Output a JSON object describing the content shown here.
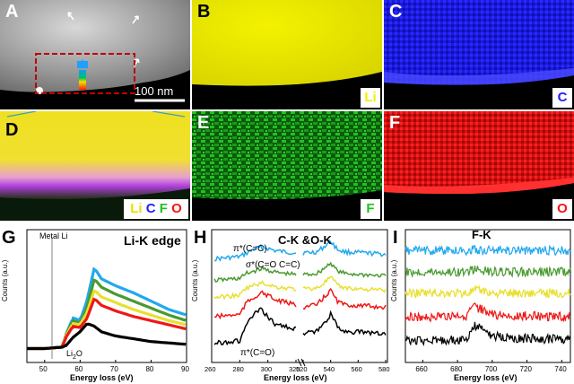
{
  "panels": {
    "A": {
      "label": "A",
      "scale_bar": "100 nm"
    },
    "B": {
      "label": "B",
      "element": "Li",
      "color": "#f2f000"
    },
    "C": {
      "label": "C",
      "element": "C",
      "color": "#2020ff"
    },
    "D": {
      "label": "D",
      "elements": [
        "Li",
        "C",
        "F",
        "O"
      ]
    },
    "E": {
      "label": "E",
      "element": "F",
      "color": "#20c020"
    },
    "F": {
      "label": "F",
      "element": "O",
      "color": "#ff1010"
    },
    "G": {
      "label": "G",
      "title": "Li-K edge",
      "annot_metal": "Metal Li",
      "annot_oxide": "Li2O",
      "ylabel": "Counts (a.u.)",
      "xlabel": "Energy loss (eV)",
      "xticks": [
        "50",
        "60",
        "70",
        "80",
        "90"
      ]
    },
    "H": {
      "label": "H",
      "title": "C-K &O-K",
      "annot_pi_cc": "π*(C=C)",
      "annot_sigma": "σ*(C=O C=C)",
      "annot_pi_co": "π*(C=O)",
      "ylabel": "Counts (a.u.)",
      "xlabel": "Energy loss (eV)",
      "xticks": [
        "260",
        "280",
        "300",
        "320",
        "520",
        "540",
        "560",
        "580"
      ]
    },
    "I": {
      "label": "I",
      "title": "F-K",
      "ylabel": "Counts (a.u.)",
      "xlabel": "Energy loss (eV)",
      "xticks": [
        "660",
        "680",
        "700",
        "720",
        "740"
      ]
    }
  },
  "spectra_colors": [
    "#22a8ee",
    "#4a9a30",
    "#e8e030",
    "#ee1818",
    "#000000"
  ],
  "chart_data": [
    {
      "type": "line",
      "title": "Li-K edge",
      "xlabel": "Energy loss (eV)",
      "ylabel": "Counts (a.u.)",
      "xlim": [
        45,
        90
      ],
      "x": [
        45,
        50,
        55,
        56,
        58,
        60,
        62,
        64,
        66,
        70,
        75,
        80,
        85,
        90
      ],
      "series": [
        {
          "values": [
            0.1,
            0.1,
            0.11,
            0.2,
            0.32,
            0.3,
            0.45,
            0.68,
            0.6,
            0.55,
            0.5,
            0.44,
            0.38,
            0.34
          ]
        },
        {
          "values": [
            0.1,
            0.1,
            0.11,
            0.2,
            0.3,
            0.28,
            0.4,
            0.6,
            0.54,
            0.49,
            0.44,
            0.39,
            0.34,
            0.3
          ]
        },
        {
          "values": [
            0.1,
            0.1,
            0.11,
            0.19,
            0.28,
            0.27,
            0.36,
            0.52,
            0.47,
            0.43,
            0.38,
            0.34,
            0.3,
            0.27
          ]
        },
        {
          "values": [
            0.1,
            0.1,
            0.11,
            0.18,
            0.26,
            0.25,
            0.32,
            0.46,
            0.41,
            0.37,
            0.33,
            0.3,
            0.27,
            0.24
          ]
        },
        {
          "values": [
            0.1,
            0.1,
            0.11,
            0.12,
            0.18,
            0.22,
            0.28,
            0.26,
            0.22,
            0.19,
            0.17,
            0.15,
            0.14,
            0.13
          ]
        }
      ]
    },
    {
      "type": "line",
      "title": "C-K &O-K",
      "xlabel": "Energy loss (eV)",
      "ylabel": "Counts (a.u.)",
      "x": [
        260,
        280,
        285,
        290,
        295,
        300,
        305,
        320,
        520,
        530,
        535,
        540,
        545,
        550,
        580
      ],
      "series": [
        {
          "values": [
            0.8,
            0.82,
            0.85,
            0.88,
            0.9,
            0.89,
            0.87,
            0.85,
            0.85,
            0.86,
            0.9,
            0.95,
            0.88,
            0.86,
            0.84
          ]
        },
        {
          "values": [
            0.62,
            0.64,
            0.68,
            0.7,
            0.72,
            0.71,
            0.69,
            0.67,
            0.67,
            0.68,
            0.72,
            0.77,
            0.7,
            0.68,
            0.66
          ]
        },
        {
          "values": [
            0.48,
            0.5,
            0.56,
            0.58,
            0.6,
            0.59,
            0.57,
            0.55,
            0.55,
            0.56,
            0.6,
            0.65,
            0.58,
            0.56,
            0.54
          ]
        },
        {
          "values": [
            0.32,
            0.34,
            0.44,
            0.48,
            0.52,
            0.5,
            0.46,
            0.42,
            0.4,
            0.42,
            0.48,
            0.54,
            0.45,
            0.42,
            0.4
          ]
        },
        {
          "values": [
            0.1,
            0.12,
            0.26,
            0.34,
            0.38,
            0.32,
            0.26,
            0.22,
            0.18,
            0.2,
            0.26,
            0.34,
            0.24,
            0.2,
            0.18
          ]
        }
      ]
    },
    {
      "type": "line",
      "title": "F-K",
      "xlabel": "Energy loss (eV)",
      "ylabel": "Counts (a.u.)",
      "xlim": [
        650,
        745
      ],
      "x": [
        650,
        670,
        685,
        690,
        695,
        700,
        710,
        745
      ],
      "series": [
        {
          "values": [
            0.9,
            0.9,
            0.9,
            0.91,
            0.9,
            0.9,
            0.9,
            0.9
          ]
        },
        {
          "values": [
            0.72,
            0.72,
            0.72,
            0.74,
            0.73,
            0.72,
            0.72,
            0.72
          ]
        },
        {
          "values": [
            0.54,
            0.54,
            0.54,
            0.56,
            0.56,
            0.54,
            0.54,
            0.54
          ]
        },
        {
          "values": [
            0.34,
            0.34,
            0.35,
            0.42,
            0.4,
            0.36,
            0.35,
            0.34
          ]
        },
        {
          "values": [
            0.14,
            0.14,
            0.15,
            0.26,
            0.24,
            0.18,
            0.16,
            0.15
          ]
        }
      ]
    }
  ]
}
